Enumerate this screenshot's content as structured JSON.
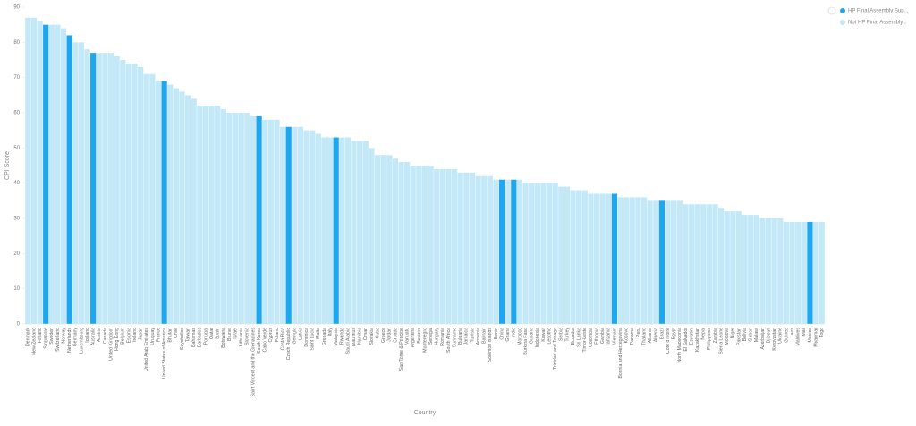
{
  "chart_data": {
    "type": "bar",
    "x_label": "Country",
    "y_label": "CPI Score",
    "categories": [
      "Denmark",
      "New Zealand",
      "Finland",
      "Singapore",
      "Sweden",
      "Switzerland",
      "Norway",
      "Netherlands",
      "Germany",
      "Luxembourg",
      "Iceland",
      "Australia",
      "Austria",
      "Canada",
      "United Kingdom",
      "Hong Kong",
      "Belgium",
      "Estonia",
      "Ireland",
      "Japan",
      "United Arab Emirates",
      "Uruguay",
      "France",
      "United States of America",
      "Bhutan",
      "Chile",
      "Seychelles",
      "Taiwan",
      "Bahamas",
      "Barbados",
      "Portugal",
      "Qatar",
      "Spain",
      "Botswana",
      "Brunei",
      "Israel",
      "Lithuania",
      "Slovenia",
      "Saint Vincent and the Grenadines",
      "South Korea",
      "Cabo Verde",
      "Cyprus",
      "Poland",
      "Costa Rica",
      "Czech Republic",
      "Georgia",
      "Latvia",
      "Dominica",
      "Saint Lucia",
      "Malta",
      "Grenada",
      "Italy",
      "Malaysia",
      "Rwanda",
      "Saudi Arabia",
      "Mauritius",
      "Namibia",
      "Oman",
      "Slovakia",
      "Cuba",
      "Greece",
      "Jordan",
      "Croatia",
      "Sao Tome & Principe",
      "Vanuatu",
      "Argentina",
      "Belarus",
      "Montenegro",
      "Senegal",
      "Hungary",
      "Romania",
      "South Africa",
      "Suriname",
      "Bulgaria",
      "Jamaica",
      "Tunisia",
      "Armenia",
      "Bahrain",
      "Solomon Islands",
      "Benin",
      "China",
      "Ghana",
      "India",
      "Morocco",
      "Burkina Faso",
      "Guyana",
      "Indonesia",
      "Kuwait",
      "Lesotho",
      "Trinidad and Tobago",
      "Serbia",
      "Turkey",
      "Ecuador",
      "Sri Lanka",
      "Timor-Leste",
      "Colombia",
      "Ethiopia",
      "Gambia",
      "Tanzania",
      "Vietnam",
      "Bosnia and Herzegovina",
      "Kosovo",
      "Panama",
      "Peru",
      "Thailand",
      "Albania",
      "Algeria",
      "Brazil",
      "Côte d'Ivoire",
      "Egypt",
      "North Macedonia",
      "El Salvador",
      "Eswatini",
      "Kazakhstan",
      "Nepal",
      "Philippines",
      "Zambia",
      "Sierra Leone",
      "Moldova",
      "Niger",
      "Pakistan",
      "Bolivia",
      "Gabon",
      "Malawi",
      "Azerbaijan",
      "Djibouti",
      "Kyrgyzstan",
      "Ukraine",
      "Guinea",
      "Laos",
      "Maldives",
      "Mali",
      "Mexico",
      "Myanmar",
      "Togo"
    ],
    "series": [
      {
        "name": "HP Final Assembly Sup...",
        "color": "#1ea7f0",
        "values": [
          null,
          null,
          null,
          85,
          null,
          null,
          null,
          82,
          null,
          null,
          null,
          77,
          null,
          null,
          null,
          null,
          null,
          null,
          null,
          null,
          null,
          null,
          null,
          69,
          null,
          null,
          null,
          null,
          null,
          null,
          null,
          null,
          null,
          null,
          null,
          null,
          null,
          null,
          null,
          59,
          null,
          null,
          null,
          null,
          56,
          null,
          null,
          null,
          null,
          null,
          null,
          null,
          53,
          null,
          null,
          null,
          null,
          null,
          null,
          null,
          null,
          null,
          null,
          null,
          null,
          null,
          null,
          null,
          null,
          null,
          null,
          null,
          null,
          null,
          null,
          null,
          null,
          null,
          null,
          null,
          41,
          null,
          41,
          null,
          null,
          null,
          null,
          null,
          null,
          null,
          null,
          null,
          null,
          null,
          null,
          null,
          null,
          null,
          null,
          37,
          null,
          null,
          null,
          null,
          null,
          null,
          null,
          35,
          null,
          null,
          null,
          null,
          null,
          null,
          null,
          null,
          null,
          null,
          null,
          null,
          null,
          null,
          null,
          null,
          null,
          null,
          null,
          null,
          null,
          null,
          null,
          null,
          29,
          null,
          null
        ]
      },
      {
        "name": "Not HP Final Assembly...",
        "color": "#c3e8f7",
        "values": [
          87,
          87,
          86,
          null,
          85,
          85,
          84,
          null,
          80,
          80,
          78,
          null,
          77,
          77,
          77,
          76,
          75,
          74,
          74,
          73,
          71,
          71,
          69,
          null,
          68,
          67,
          66,
          65,
          64,
          62,
          62,
          62,
          62,
          61,
          60,
          60,
          60,
          60,
          59,
          null,
          58,
          58,
          58,
          56,
          null,
          56,
          56,
          55,
          55,
          54,
          53,
          53,
          null,
          53,
          53,
          52,
          52,
          52,
          50,
          48,
          48,
          48,
          47,
          46,
          46,
          45,
          45,
          45,
          45,
          44,
          44,
          44,
          44,
          43,
          43,
          43,
          42,
          42,
          42,
          41,
          null,
          41,
          null,
          41,
          40,
          40,
          40,
          40,
          40,
          40,
          39,
          39,
          38,
          38,
          38,
          37,
          37,
          37,
          37,
          null,
          36,
          36,
          36,
          36,
          36,
          35,
          35,
          null,
          35,
          35,
          35,
          34,
          34,
          34,
          34,
          34,
          34,
          33,
          32,
          32,
          32,
          31,
          31,
          31,
          30,
          30,
          30,
          30,
          29,
          29,
          29,
          29,
          null,
          29,
          29
        ]
      }
    ],
    "ylim": [
      0,
      90
    ],
    "yticks": [
      0,
      10,
      20,
      30,
      40,
      50,
      60,
      70,
      80,
      90
    ],
    "legend": "top-right"
  }
}
